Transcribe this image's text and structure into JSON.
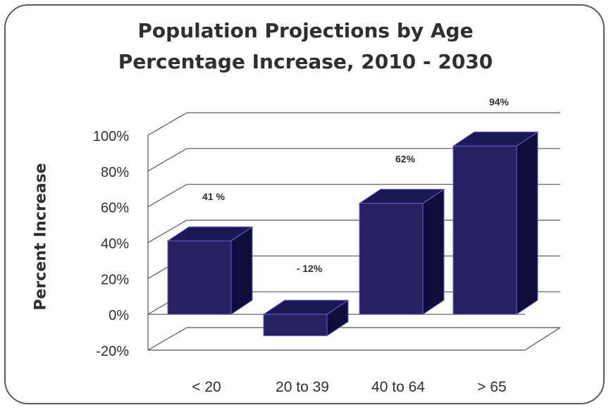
{
  "chart_data": {
    "type": "bar",
    "title": "Population Projections by Age",
    "subtitle": "Percentage Increase, 2010 - 2030",
    "ylabel": "Percent Increase",
    "xlabel": "",
    "categories": [
      "< 20",
      "20 to 39",
      "40 to 64",
      "> 65"
    ],
    "values": [
      41,
      -12,
      62,
      94
    ],
    "data_labels": [
      "41 %",
      "- 12%",
      "62%",
      "94%"
    ],
    "ylim": [
      -20,
      100
    ],
    "yticks": [
      -20,
      0,
      20,
      40,
      60,
      80,
      100
    ],
    "ytick_labels": [
      "-20%",
      "0%",
      "20%",
      "40%",
      "60%",
      "80%",
      "100%"
    ],
    "grid": true,
    "style": "3d",
    "colors": {
      "bar_front": "#262262",
      "bar_top": "#1c1a55",
      "bar_side": "#0f0d3a",
      "bar_edge": "#6a5fd0",
      "grid": "#555555",
      "text": "#2f2f2f"
    }
  }
}
